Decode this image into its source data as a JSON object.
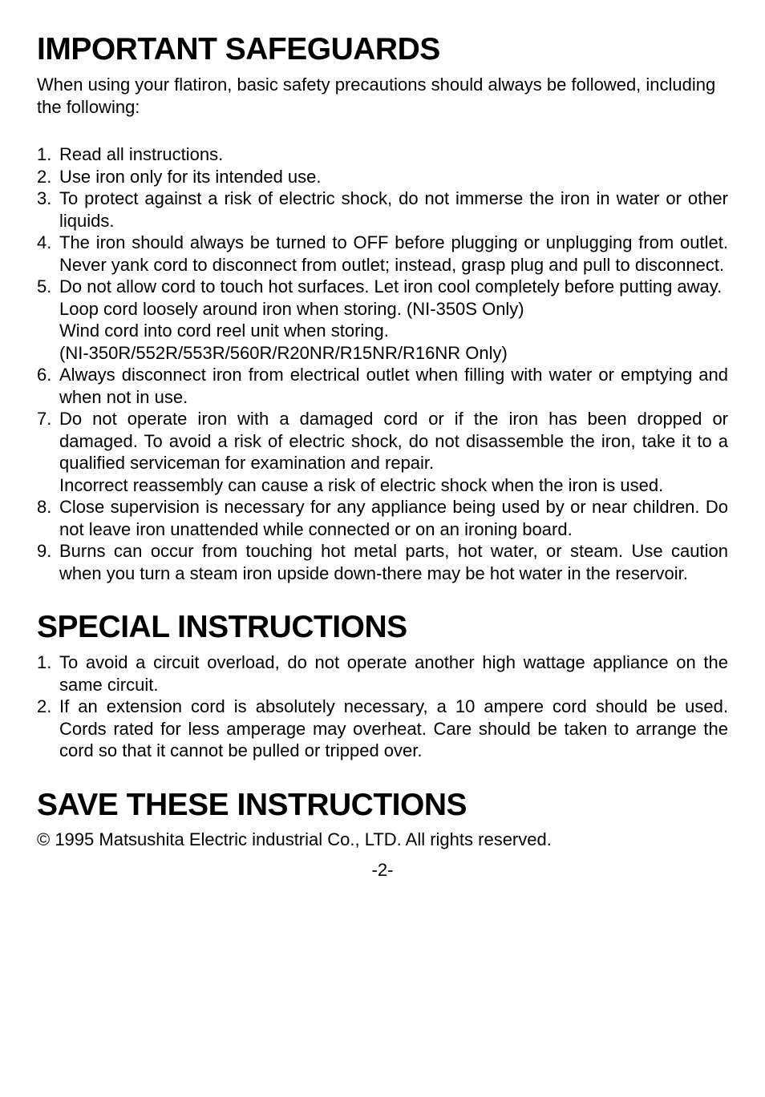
{
  "section1": {
    "title": "IMPORTANT SAFEGUARDS",
    "intro": "When using your flatiron, basic safety precautions should always be followed, including the following:",
    "items": [
      {
        "n": "1.",
        "lines": [
          "Read all instructions."
        ]
      },
      {
        "n": "2.",
        "lines": [
          "Use iron only for its intended use."
        ]
      },
      {
        "n": "3.",
        "lines": [
          "To protect against a risk of electric shock, do not immerse the iron in water or other liquids."
        ]
      },
      {
        "n": "4.",
        "lines": [
          "The iron should always be turned to OFF before plugging or unplugging from outlet. Never yank cord to disconnect from outlet; instead, grasp plug and pull to disconnect."
        ]
      },
      {
        "n": "5.",
        "lines": [
          "Do not allow cord to touch hot surfaces. Let iron cool completely before putting away.",
          "Loop cord loosely around iron when storing. (NI-350S Only)",
          "Wind cord into cord reel unit when storing.",
          "(NI-350R/552R/553R/560R/R20NR/R15NR/R16NR Only)"
        ]
      },
      {
        "n": "6.",
        "lines": [
          "Always disconnect iron from electrical outlet when filling with water or emptying and when not in use."
        ]
      },
      {
        "n": "7.",
        "lines": [
          "Do not operate iron with a damaged cord or if the iron has been dropped or damaged. To avoid a risk of electric shock, do not disassemble the iron, take it to a qualified serviceman for examination and repair.",
          "Incorrect reassembly can cause a risk of electric shock when the iron is used."
        ]
      },
      {
        "n": "8.",
        "lines": [
          "Close supervision is necessary for any appliance being used by or near children. Do not leave iron unattended while connected or on an ironing board."
        ]
      },
      {
        "n": "9.",
        "lines": [
          "Burns can occur from touching hot metal parts, hot water, or steam. Use caution when you turn a steam iron upside down-there may be hot water in the reservoir."
        ]
      }
    ]
  },
  "section2": {
    "title": "SPECIAL INSTRUCTIONS",
    "items": [
      {
        "n": "1.",
        "lines": [
          "To avoid a circuit overload, do not operate another high wattage appliance on the same circuit."
        ]
      },
      {
        "n": "2.",
        "lines": [
          "If an extension cord is absolutely necessary, a 10 ampere cord should be used. Cords rated for less amperage may overheat. Care should be taken to arrange the cord so that it cannot be pulled or tripped over."
        ]
      }
    ]
  },
  "section3": {
    "title": "SAVE THESE INSTRUCTIONS",
    "copyright": "© 1995 Matsushita Electric industrial Co., LTD. All rights reserved."
  },
  "pageNumber": "-2-"
}
